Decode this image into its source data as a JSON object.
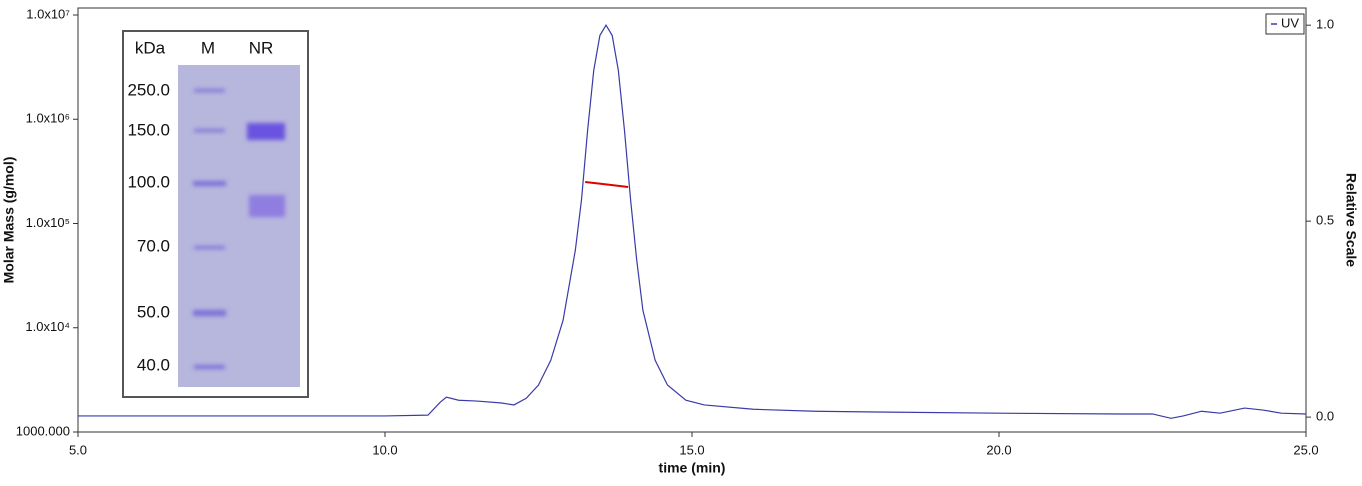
{
  "chart_data": {
    "type": "line",
    "xlabel": "time (min)",
    "ylabel": "Molar Mass (g/mol)",
    "y2label": "Relative Scale",
    "xlim": [
      5,
      25
    ],
    "xticks": [
      {
        "value": 5,
        "label": "5.0"
      },
      {
        "value": 10,
        "label": "10.0"
      },
      {
        "value": 15,
        "label": "15.0"
      },
      {
        "value": 20,
        "label": "20.0"
      },
      {
        "value": 25,
        "label": "25.0"
      }
    ],
    "yscale": "log",
    "ylim": [
      1000,
      10000000
    ],
    "yticks": [
      {
        "value": 1000,
        "label": "1000.000"
      },
      {
        "value": 10000,
        "label": "1.0x10⁴"
      },
      {
        "value": 100000,
        "label": "1.0x10⁵"
      },
      {
        "value": 1000000,
        "label": "1.0x10⁶"
      },
      {
        "value": 10000000,
        "label": "1.0x10⁷"
      }
    ],
    "y2lim": [
      -0.038,
      1.026
    ],
    "y2ticks": [
      {
        "value": 0,
        "label": "0.0"
      },
      {
        "value": 0.5,
        "label": "0.5"
      },
      {
        "value": 1,
        "label": "1.0"
      }
    ],
    "legend": "top-right",
    "series": [
      {
        "name": "UV",
        "color": "#3a3aa8",
        "axis": "y2",
        "x": [
          5,
          10,
          10.7,
          10.9,
          11.0,
          11.2,
          11.5,
          11.9,
          12.1,
          12.3,
          12.5,
          12.7,
          12.9,
          13.1,
          13.2,
          13.3,
          13.4,
          13.5,
          13.6,
          13.7,
          13.8,
          13.9,
          14.0,
          14.1,
          14.2,
          14.4,
          14.6,
          14.9,
          15.2,
          16,
          17,
          18,
          20,
          22,
          22.5,
          22.8,
          23.0,
          23.3,
          23.6,
          24.0,
          24.3,
          24.6,
          25
        ],
        "values": [
          0.003,
          0.003,
          0.005,
          0.038,
          0.051,
          0.043,
          0.041,
          0.036,
          0.031,
          0.048,
          0.082,
          0.145,
          0.247,
          0.426,
          0.554,
          0.732,
          0.885,
          0.974,
          1.0,
          0.974,
          0.885,
          0.732,
          0.554,
          0.4,
          0.273,
          0.145,
          0.082,
          0.043,
          0.031,
          0.02,
          0.015,
          0.013,
          0.01,
          0.008,
          0.008,
          -0.003,
          0.003,
          0.015,
          0.01,
          0.023,
          0.018,
          0.01,
          0.008
        ]
      },
      {
        "color": "#e00000",
        "axis": "y",
        "x": [
          13.26,
          13.6,
          13.96
        ],
        "values": [
          250000,
          237000,
          224000
        ]
      }
    ],
    "gel": {
      "header": [
        "kDa",
        "M",
        "NR"
      ],
      "markers": [
        "250.0",
        "150.0",
        "100.0",
        "70.0",
        "50.0",
        "40.0"
      ]
    }
  }
}
